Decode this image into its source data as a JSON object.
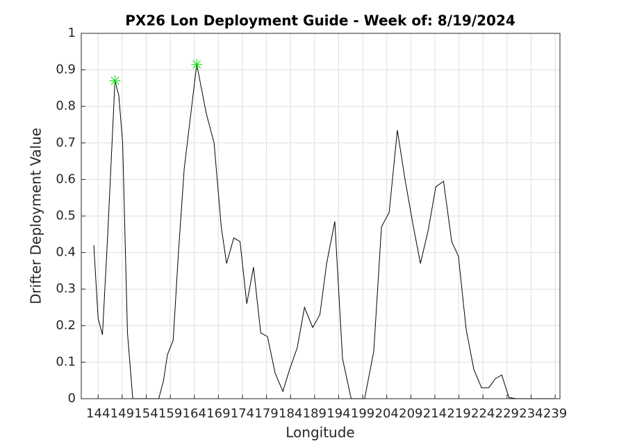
{
  "chart_data": {
    "type": "line",
    "title": "PX26 Lon Deployment Guide - Week of: 8/19/2024",
    "xlabel": "Longitude",
    "ylabel": "Drifter Deployment Value",
    "x": [
      143.1,
      144.0,
      144.9,
      146.0,
      147.5,
      148.3,
      149.1,
      150.1,
      151.2,
      156.6,
      157.6,
      158.4,
      159.6,
      160.7,
      161.9,
      164.5,
      166.5,
      168.1,
      169.6,
      170.7,
      172.2,
      173.5,
      174.9,
      176.3,
      177.8,
      179.2,
      180.8,
      182.4,
      183.8,
      185.4,
      186.9,
      188.6,
      190.1,
      191.5,
      193.2,
      194.8,
      196.6,
      199.4,
      201.3,
      202.9,
      204.5,
      206.2,
      207.8,
      209.4,
      211.0,
      212.6,
      214.2,
      215.8,
      217.5,
      218.9,
      220.5,
      222.1,
      223.7,
      225.2,
      226.6,
      227.9,
      229.4,
      230.9,
      238.9
    ],
    "values": [
      0.42,
      0.22,
      0.175,
      0.45,
      0.87,
      0.83,
      0.7,
      0.18,
      0,
      0,
      0.05,
      0.12,
      0.16,
      0.4,
      0.63,
      0.915,
      0.78,
      0.7,
      0.47,
      0.37,
      0.44,
      0.43,
      0.26,
      0.36,
      0.18,
      0.17,
      0.07,
      0.02,
      0.08,
      0.14,
      0.25,
      0.195,
      0.23,
      0.37,
      0.485,
      0.11,
      0,
      0,
      0.13,
      0.47,
      0.51,
      0.735,
      0.6,
      0.48,
      0.37,
      0.46,
      0.58,
      0.595,
      0.43,
      0.39,
      0.19,
      0.08,
      0.03,
      0.03,
      0.055,
      0.065,
      0.003,
      0,
      0
    ],
    "color": "#000000",
    "markers": {
      "x": [
        147.5,
        164.5
      ],
      "values": [
        0.87,
        0.915
      ],
      "color": "#00dd00"
    },
    "xlim": [
      140.5,
      240
    ],
    "xticks": [
      144,
      149,
      154,
      159,
      164,
      169,
      174,
      179,
      184,
      189,
      194,
      199,
      204,
      209,
      214,
      219,
      224,
      229,
      234,
      239
    ],
    "ylim": [
      0,
      1
    ],
    "yticks": [
      0,
      0.1,
      0.2,
      0.3,
      0.4,
      0.5,
      0.6,
      0.7,
      0.8,
      0.9,
      1
    ],
    "grid": true
  }
}
